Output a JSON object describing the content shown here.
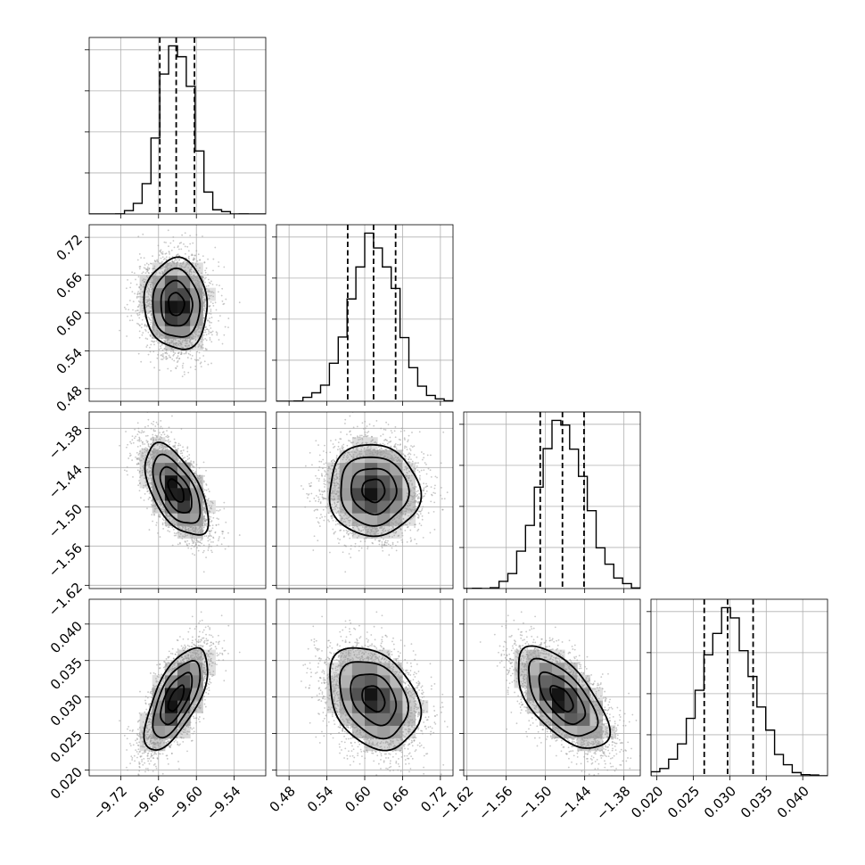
{
  "chart_data": {
    "type": "corner",
    "parameters": [
      {
        "index": 0,
        "range": [
          -9.77,
          -9.49
        ],
        "mean": -9.632,
        "sigma": 0.025,
        "quantiles": [
          -9.658,
          -9.632,
          -9.603
        ],
        "ticks": [
          -9.72,
          -9.66,
          -9.6,
          -9.54
        ],
        "tick_labels": [
          "−9.72",
          "−9.66",
          "−9.60",
          "−9.54"
        ]
      },
      {
        "index": 1,
        "range": [
          0.46,
          0.74
        ],
        "mean": 0.614,
        "sigma": 0.036,
        "quantiles": [
          0.573,
          0.614,
          0.649
        ],
        "ticks": [
          0.48,
          0.54,
          0.6,
          0.66,
          0.72
        ],
        "tick_labels": [
          "0.48",
          "0.54",
          "0.60",
          "0.66",
          "0.72"
        ]
      },
      {
        "index": 2,
        "range": [
          -1.625,
          -1.355
        ],
        "mean": -1.475,
        "sigma": 0.035,
        "quantiles": [
          -1.508,
          -1.474,
          -1.441
        ],
        "ticks": [
          -1.62,
          -1.56,
          -1.5,
          -1.44,
          -1.38
        ],
        "tick_labels": [
          "−1.62",
          "−1.56",
          "−1.50",
          "−1.44",
          "−1.38"
        ]
      },
      {
        "index": 3,
        "range": [
          0.0192,
          0.0434
        ],
        "mean": 0.0298,
        "sigma": 0.0035,
        "quantiles": [
          0.0265,
          0.0297,
          0.0332
        ],
        "ticks": [
          0.02,
          0.025,
          0.03,
          0.035,
          0.04
        ],
        "tick_labels": [
          "0.020",
          "0.025",
          "0.030",
          "0.035",
          "0.040"
        ]
      }
    ],
    "correlations": [
      {
        "pair": [
          0,
          1
        ],
        "rho": -0.05
      },
      {
        "pair": [
          0,
          2
        ],
        "rho": -0.58
      },
      {
        "pair": [
          1,
          2
        ],
        "rho": -0.03
      },
      {
        "pair": [
          0,
          3
        ],
        "rho": 0.66
      },
      {
        "pair": [
          1,
          3
        ],
        "rho": -0.3
      },
      {
        "pair": [
          2,
          3
        ],
        "rho": -0.62
      }
    ],
    "histogram_bins": 20,
    "contour_levels_sigma": [
      0.5,
      1.0,
      1.5,
      2.0
    ],
    "grid": true,
    "hist_y_tick_labels": false,
    "line_color": "#000000",
    "point_color": "#9a9a9a",
    "grid_color": "#b0b0b0"
  }
}
